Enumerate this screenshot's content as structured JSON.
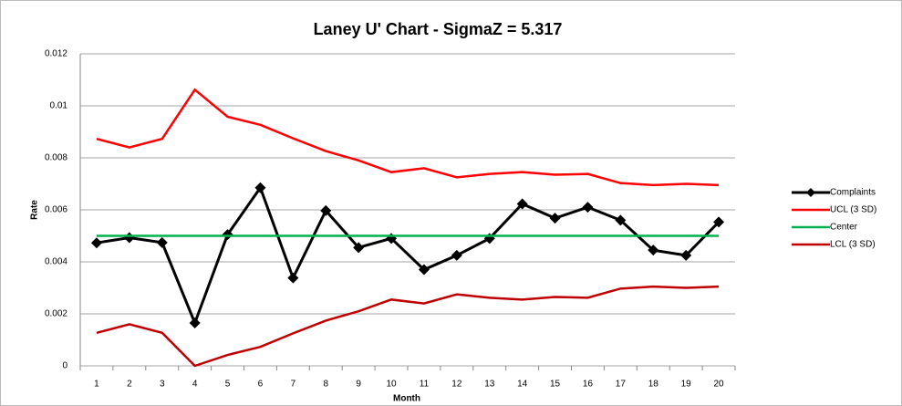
{
  "chart_data": {
    "type": "line",
    "title": "Laney U' Chart - SigmaZ = 5.317",
    "x_label": "Month",
    "y_label": "Rate",
    "categories": [
      1,
      2,
      3,
      4,
      5,
      6,
      7,
      8,
      9,
      10,
      11,
      12,
      13,
      14,
      15,
      16,
      17,
      18,
      19,
      20
    ],
    "ylim": [
      0,
      0.012
    ],
    "yticks": [
      0,
      0.002,
      0.004,
      0.006,
      0.008,
      0.01,
      0.012
    ],
    "grid": true,
    "legend": "right",
    "series": [
      {
        "name": "Complaints",
        "color": "#000000",
        "markers": true,
        "values": [
          0.00473,
          0.00493,
          0.00474,
          0.00165,
          0.00505,
          0.00685,
          0.00338,
          0.00597,
          0.00455,
          0.0049,
          0.0037,
          0.00425,
          0.0049,
          0.00623,
          0.00568,
          0.0061,
          0.0056,
          0.00445,
          0.00425,
          0.00553
        ]
      },
      {
        "name": "UCL (3 SD)",
        "color": "#ff0000",
        "markers": false,
        "values": [
          0.00873,
          0.0084,
          0.00873,
          0.01062,
          0.00958,
          0.00927,
          0.00875,
          0.00826,
          0.0079,
          0.00745,
          0.0076,
          0.00725,
          0.00738,
          0.00745,
          0.00735,
          0.00738,
          0.00703,
          0.00695,
          0.007,
          0.00695
        ]
      },
      {
        "name": "Center",
        "color": "#00b050",
        "markers": false,
        "values": [
          0.005,
          0.005,
          0.005,
          0.005,
          0.005,
          0.005,
          0.005,
          0.005,
          0.005,
          0.005,
          0.005,
          0.005,
          0.005,
          0.005,
          0.005,
          0.005,
          0.005,
          0.005,
          0.005,
          0.005
        ]
      },
      {
        "name": "LCL (3 SD)",
        "color": "#c00000",
        "markers": false,
        "values": [
          0.00127,
          0.0016,
          0.00127,
          0,
          0.00042,
          0.00073,
          0.00125,
          0.00174,
          0.0021,
          0.00255,
          0.0024,
          0.00275,
          0.00262,
          0.00255,
          0.00265,
          0.00262,
          0.00297,
          0.00305,
          0.003,
          0.00305
        ]
      }
    ]
  }
}
